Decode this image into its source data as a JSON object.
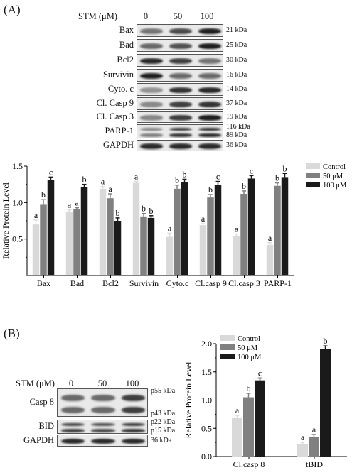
{
  "panel_a": {
    "letter": "(A)",
    "stm_label": "STM (μM)",
    "concentrations": [
      "0",
      "50",
      "100"
    ],
    "blots": [
      {
        "name": "Bax",
        "kda": [
          "21 kDa"
        ],
        "bands": [
          0.55,
          0.75,
          0.95
        ]
      },
      {
        "name": "Bad",
        "kda": [
          "25 kDa"
        ],
        "bands": [
          0.6,
          0.7,
          0.95
        ]
      },
      {
        "name": "Bcl2",
        "kda": [
          "30 kDa"
        ],
        "bands": [
          0.9,
          0.8,
          0.55
        ]
      },
      {
        "name": "Survivin",
        "kda": [
          "16 kDa"
        ],
        "bands": [
          0.95,
          0.6,
          0.6
        ]
      },
      {
        "name": "Cyto. c",
        "kda": [
          "14 kDa"
        ],
        "bands": [
          0.4,
          0.85,
          0.9
        ]
      },
      {
        "name": "Cl. Casp 9",
        "kda": [
          "37 kDa"
        ],
        "bands": [
          0.45,
          0.8,
          0.85
        ]
      },
      {
        "name": "Cl. Casp 3",
        "kda": [
          "19 kDa"
        ],
        "bands": [
          0.45,
          0.8,
          0.95
        ]
      },
      {
        "name": "PARP-1",
        "kda": [
          "116 kDa",
          "89 kDa"
        ],
        "bands": [
          0.5,
          0.85,
          0.9
        ]
      },
      {
        "name": "GAPDH",
        "kda": [
          "36 kDa"
        ],
        "bands": [
          0.9,
          0.9,
          0.9
        ]
      }
    ]
  },
  "panel_b": {
    "letter": "(B)",
    "stm_label": "STM (μM)",
    "concentrations": [
      "0",
      "50",
      "100"
    ],
    "blots": [
      {
        "name": "Casp 8",
        "kda": [
          "p55 kDa",
          "p43 kDa"
        ],
        "bands": [
          0.6,
          0.6,
          0.8
        ]
      },
      {
        "name": "BID",
        "kda": [
          "p22 kDa",
          "p15 kDa"
        ],
        "bands": [
          0.8,
          0.75,
          0.85
        ]
      },
      {
        "name": "GAPDH",
        "kda": [
          "36 kDa"
        ],
        "bands": [
          0.9,
          0.9,
          0.9
        ]
      }
    ]
  },
  "colors": {
    "control": "#d9d9d9",
    "50uM": "#808080",
    "100uM": "#1a1a1a"
  },
  "chart_data": [
    {
      "type": "bar",
      "title": "",
      "xlabel": "",
      "ylabel": "Relative Protein Level",
      "ylim": [
        0,
        1.5
      ],
      "yticks": [
        "0.5",
        "1.0",
        "1.5"
      ],
      "legend_placement": "top-right",
      "categories": [
        "Bax",
        "Bad",
        "Bcl2",
        "Survivin",
        "Cyto.c",
        "Cl.casp 9",
        "Cl.casp 3",
        "PARP-1"
      ],
      "series": [
        {
          "name": "Control",
          "values": [
            0.7,
            0.87,
            1.19,
            1.27,
            0.53,
            0.69,
            0.54,
            0.42
          ],
          "errors": [
            0.06,
            0.03,
            0.03,
            0.02,
            0.05,
            0.02,
            0.03,
            0.03
          ],
          "letters": [
            "a",
            "a",
            "a",
            "a",
            "a",
            "a",
            "a",
            "a"
          ]
        },
        {
          "name": "50 μM",
          "values": [
            0.97,
            0.91,
            1.06,
            0.81,
            1.19,
            1.07,
            1.12,
            1.23
          ],
          "errors": [
            0.07,
            0.02,
            0.06,
            0.04,
            0.05,
            0.04,
            0.04,
            0.04
          ],
          "letters": [
            "b",
            "a",
            "a",
            "b",
            "b",
            "b",
            "b",
            "b"
          ]
        },
        {
          "name": "100 μM",
          "values": [
            1.31,
            1.21,
            0.75,
            0.79,
            1.28,
            1.24,
            1.33,
            1.35
          ],
          "errors": [
            0.04,
            0.04,
            0.04,
            0.03,
            0.04,
            0.05,
            0.04,
            0.05
          ],
          "letters": [
            "c",
            "b",
            "b",
            "b",
            "b",
            "c",
            "c",
            "b"
          ]
        }
      ]
    },
    {
      "type": "bar",
      "title": "",
      "xlabel": "",
      "ylabel": "Relative Protein Level",
      "ylim": [
        0,
        2.0
      ],
      "yticks": [
        "0.0",
        "0.5",
        "1.0",
        "1.5",
        "2.0"
      ],
      "legend_placement": "top-left",
      "categories": [
        "Cl.casp 8",
        "tBID"
      ],
      "series": [
        {
          "name": "Control",
          "values": [
            0.68,
            0.22
          ],
          "errors": [
            0.05,
            0.03
          ],
          "letters": [
            "a",
            "a"
          ]
        },
        {
          "name": "50 μM",
          "values": [
            1.05,
            0.35
          ],
          "errors": [
            0.07,
            0.04
          ],
          "letters": [
            "b",
            "a"
          ]
        },
        {
          "name": "100 μM",
          "values": [
            1.35,
            1.9
          ],
          "errors": [
            0.04,
            0.06
          ],
          "letters": [
            "c",
            "b"
          ]
        }
      ]
    }
  ]
}
